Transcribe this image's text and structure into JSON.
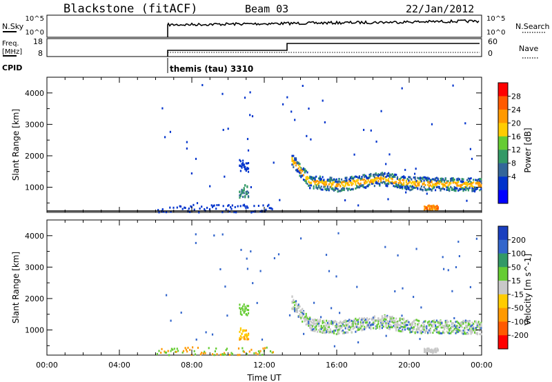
{
  "header": {
    "station": "Blackstone (fitACF)",
    "beam": "Beam 03",
    "date": "22/Jan/2012"
  },
  "top_panels": {
    "nsky_label": "N.Sky",
    "nsky_ticks": [
      "10^5",
      "10^0"
    ],
    "nsearch_label": "N.Search",
    "nsearch_ticks": [
      "10^5",
      "10^0"
    ],
    "freq_label": "Freq.",
    "freq_unit": "[MHz]",
    "freq_ticks": [
      "18",
      "8"
    ],
    "nave_label": "Nave",
    "nave_ticks": [
      "60",
      "0"
    ],
    "cpid_label": "CPID",
    "cpid_value": "themis (tau) 3310"
  },
  "chart_data": [
    {
      "type": "heatmap",
      "title": "",
      "xlabel": "",
      "ylabel": "Slant Range [km]",
      "xlim": [
        0,
        24
      ],
      "ylim": [
        200,
        4500
      ],
      "yticks": [
        "1000",
        "2000",
        "3000",
        "4000"
      ],
      "colorbar": {
        "label": "Power [dB]",
        "ticks": [
          "28",
          "24",
          "20",
          "16",
          "12",
          "8",
          "4"
        ],
        "colors": [
          "#ff0000",
          "#ff5a00",
          "#ff9900",
          "#ffcc00",
          "#66cc33",
          "#339966",
          "#336699",
          "#0033cc",
          "#0000ff"
        ]
      },
      "features": [
        {
          "desc": "main echo band",
          "time_start": 13.5,
          "time_end": 24.0,
          "range_center": [
            1900,
            1200,
            1100,
            1300,
            1150,
            1100
          ],
          "times": [
            13.5,
            14.5,
            16,
            18.5,
            20,
            24
          ]
        },
        {
          "desc": "afternoon patch",
          "time": [
            20.8,
            21.5
          ],
          "range": [
            300,
            450
          ]
        },
        {
          "desc": "morning patch",
          "time": [
            10.6,
            11.1
          ],
          "range": [
            700,
            1900
          ]
        }
      ]
    },
    {
      "type": "heatmap",
      "title": "",
      "xlabel": "Time UT",
      "ylabel": "Slant Range [km]",
      "xlim": [
        0,
        24
      ],
      "ylim": [
        200,
        4500
      ],
      "xticks": [
        "00:00",
        "04:00",
        "08:00",
        "12:00",
        "16:00",
        "20:00",
        "00:00"
      ],
      "yticks": [
        "1000",
        "2000",
        "3000",
        "4000"
      ],
      "colorbar": {
        "label": "Velocity [m s^-1]",
        "ticks": [
          "200",
          "100",
          "50",
          "15",
          "-15",
          "-50",
          "-100",
          "-200"
        ],
        "colors": [
          "#1a3fbf",
          "#3366cc",
          "#339966",
          "#66cc33",
          "#c8c8c8",
          "#ffcc00",
          "#ff9900",
          "#ff5a00",
          "#ff0000"
        ]
      }
    }
  ]
}
